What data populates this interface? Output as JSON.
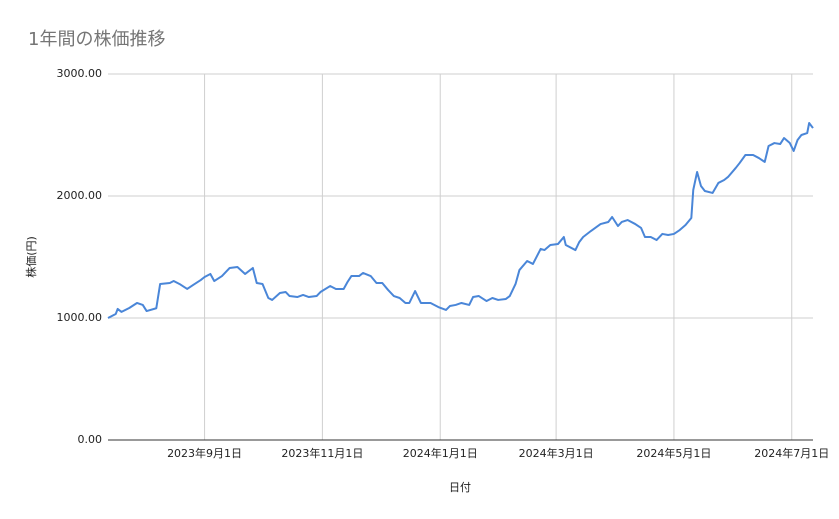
{
  "chart_data": {
    "type": "line",
    "title": "1年間の株価推移",
    "x_label": "日付",
    "y_label": "株価(円)",
    "color": "#4a86d8",
    "grid": true,
    "xlim": [
      "2023-07-13",
      "2024-07-12"
    ],
    "xticks": [
      {
        "value": "2023-09-01",
        "label": "2023年9月1日"
      },
      {
        "value": "2023-11-01",
        "label": "2023年11月1日"
      },
      {
        "value": "2024-01-01",
        "label": "2024年1月1日"
      },
      {
        "value": "2024-03-01",
        "label": "2024年3月1日"
      },
      {
        "value": "2024-05-01",
        "label": "2024年5月1日"
      },
      {
        "value": "2024-07-01",
        "label": "2024年7月1日"
      }
    ],
    "ylim": [
      0,
      3000
    ],
    "yticks": [
      {
        "value": 0,
        "label": "0.00"
      },
      {
        "value": 1000,
        "label": "1000.00"
      },
      {
        "value": 2000,
        "label": "2000.00"
      },
      {
        "value": 3000,
        "label": "3000.00"
      }
    ],
    "x": [
      "2023-07-13",
      "2023-07-17",
      "2023-07-18",
      "2023-07-20",
      "2023-07-24",
      "2023-07-28",
      "2023-07-31",
      "2023-08-02",
      "2023-08-07",
      "2023-08-09",
      "2023-08-14",
      "2023-08-16",
      "2023-08-19",
      "2023-08-23",
      "2023-08-26",
      "2023-08-30",
      "2023-09-01",
      "2023-09-04",
      "2023-09-06",
      "2023-09-10",
      "2023-09-14",
      "2023-09-18",
      "2023-09-22",
      "2023-09-26",
      "2023-09-28",
      "2023-10-01",
      "2023-10-04",
      "2023-10-06",
      "2023-10-10",
      "2023-10-13",
      "2023-10-15",
      "2023-10-19",
      "2023-10-22",
      "2023-10-25",
      "2023-10-29",
      "2023-10-31",
      "2023-11-05",
      "2023-11-08",
      "2023-11-12",
      "2023-11-14",
      "2023-11-16",
      "2023-11-20",
      "2023-11-22",
      "2023-11-26",
      "2023-11-29",
      "2023-12-02",
      "2023-12-05",
      "2023-12-08",
      "2023-12-11",
      "2023-12-14",
      "2023-12-16",
      "2023-12-19",
      "2023-12-22",
      "2023-12-27",
      "2023-12-31",
      "2024-01-04",
      "2024-01-06",
      "2024-01-09",
      "2024-01-12",
      "2024-01-16",
      "2024-01-18",
      "2024-01-21",
      "2024-01-25",
      "2024-01-28",
      "2024-01-31",
      "2024-02-04",
      "2024-02-06",
      "2024-02-09",
      "2024-02-11",
      "2024-02-15",
      "2024-02-18",
      "2024-02-22",
      "2024-02-24",
      "2024-02-27",
      "2024-03-02",
      "2024-03-05",
      "2024-03-06",
      "2024-03-11",
      "2024-03-13",
      "2024-03-15",
      "2024-03-19",
      "2024-03-24",
      "2024-03-28",
      "2024-03-30",
      "2024-04-02",
      "2024-04-04",
      "2024-04-07",
      "2024-04-11",
      "2024-04-14",
      "2024-04-16",
      "2024-04-19",
      "2024-04-22",
      "2024-04-25",
      "2024-04-28",
      "2024-05-01",
      "2024-05-04",
      "2024-05-07",
      "2024-05-10",
      "2024-05-11",
      "2024-05-13",
      "2024-05-15",
      "2024-05-17",
      "2024-05-21",
      "2024-05-24",
      "2024-05-27",
      "2024-05-29",
      "2024-06-02",
      "2024-06-04",
      "2024-06-07",
      "2024-06-11",
      "2024-06-14",
      "2024-06-17",
      "2024-06-19",
      "2024-06-22",
      "2024-06-25",
      "2024-06-27",
      "2024-06-30",
      "2024-07-02",
      "2024-07-04",
      "2024-07-06",
      "2024-07-09",
      "2024-07-10",
      "2024-07-12"
    ],
    "values": [
      1000,
      1033,
      1074,
      1050,
      1082,
      1123,
      1107,
      1057,
      1080,
      1279,
      1287,
      1303,
      1279,
      1238,
      1270,
      1311,
      1336,
      1361,
      1303,
      1344,
      1410,
      1418,
      1361,
      1410,
      1287,
      1279,
      1164,
      1148,
      1205,
      1213,
      1180,
      1172,
      1189,
      1172,
      1180,
      1213,
      1262,
      1238,
      1238,
      1295,
      1344,
      1344,
      1369,
      1344,
      1287,
      1287,
      1230,
      1180,
      1164,
      1123,
      1123,
      1221,
      1123,
      1123,
      1090,
      1066,
      1098,
      1107,
      1123,
      1107,
      1172,
      1180,
      1139,
      1164,
      1148,
      1156,
      1180,
      1279,
      1393,
      1467,
      1443,
      1566,
      1557,
      1598,
      1607,
      1664,
      1598,
      1557,
      1623,
      1664,
      1713,
      1770,
      1787,
      1828,
      1754,
      1787,
      1803,
      1770,
      1738,
      1664,
      1664,
      1639,
      1689,
      1680,
      1689,
      1721,
      1762,
      1820,
      2049,
      2197,
      2082,
      2041,
      2025,
      2107,
      2131,
      2156,
      2230,
      2270,
      2336,
      2336,
      2311,
      2279,
      2410,
      2434,
      2426,
      2475,
      2434,
      2369,
      2459,
      2500,
      2516,
      2598,
      2557
    ]
  }
}
